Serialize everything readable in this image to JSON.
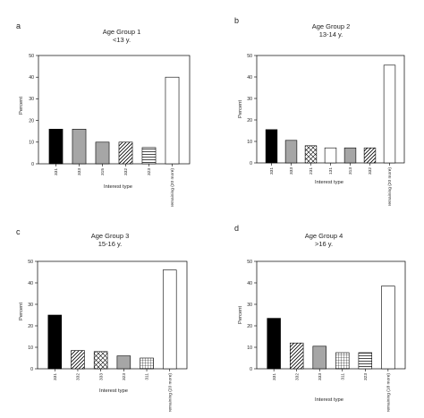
{
  "colors": {
    "black_fill": "#000000",
    "gray_fill": "#a6a6a6",
    "axis": "#000000",
    "background": "#ffffff"
  },
  "chart_data": [
    {
      "panel_letter": "a",
      "type": "bar",
      "title": "Age Group 1",
      "subtitle": "<13 y.",
      "xlabel": "Interest type",
      "ylabel": "Percent",
      "ylim": [
        0,
        50
      ],
      "yticks": [
        0,
        10,
        20,
        30,
        40,
        50
      ],
      "grid": false,
      "categories": [
        "331",
        "333",
        "315",
        "332",
        "323",
        "remaining (20 more)"
      ],
      "values": [
        16,
        16,
        10,
        10,
        7.5,
        40
      ],
      "patterns": [
        "black",
        "gray",
        "gray",
        "diag",
        "hatch",
        "white"
      ]
    },
    {
      "panel_letter": "b",
      "type": "bar",
      "title": "Age Group 2",
      "subtitle": "13-14 y.",
      "xlabel": "Interest type",
      "ylabel": "Percent",
      "ylim": [
        0,
        50
      ],
      "yticks": [
        0,
        10,
        20,
        30,
        40,
        50
      ],
      "grid": false,
      "categories": [
        "331",
        "333",
        "231",
        "131",
        "313",
        "332",
        "remaining (20 more)"
      ],
      "values": [
        15.5,
        10.5,
        8,
        7,
        7,
        7,
        45.5
      ],
      "patterns": [
        "black",
        "gray",
        "cross",
        "white",
        "gray",
        "diag",
        "white"
      ]
    },
    {
      "panel_letter": "c",
      "type": "bar",
      "title": "Age Group 3",
      "subtitle": "15-16 y.",
      "xlabel": "Interest type",
      "ylabel": "Percent",
      "ylim": [
        0,
        50
      ],
      "yticks": [
        0,
        10,
        20,
        30,
        40,
        50
      ],
      "grid": false,
      "categories": [
        "331",
        "332",
        "333",
        "323",
        "311",
        "remaining (20 more)"
      ],
      "values": [
        25,
        8.5,
        8,
        6,
        5,
        46
      ],
      "patterns": [
        "black",
        "diag",
        "cross",
        "gray",
        "grid",
        "white"
      ]
    },
    {
      "panel_letter": "d",
      "type": "bar",
      "title": "Age Group 4",
      "subtitle": ">16 y.",
      "xlabel": "Interest type",
      "ylabel": "Percent",
      "ylim": [
        0,
        50
      ],
      "yticks": [
        0,
        10,
        20,
        30,
        40,
        50
      ],
      "grid": false,
      "categories": [
        "331",
        "332",
        "333",
        "311",
        "323",
        "remaining (18 more)"
      ],
      "values": [
        23.5,
        12,
        10.5,
        7.5,
        7.5,
        38.5
      ],
      "patterns": [
        "black",
        "diag",
        "gray",
        "grid",
        "hatch",
        "white"
      ]
    }
  ]
}
